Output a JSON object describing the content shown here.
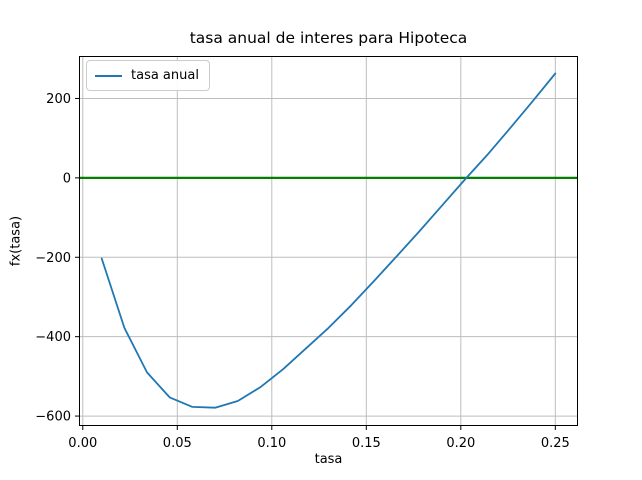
{
  "figure": {
    "title": "tasa anual de interes para Hipoteca",
    "xlabel": "tasa",
    "ylabel": "fx(tasa)"
  },
  "legend": {
    "items": [
      {
        "label": "tasa anual",
        "color": "#1f77b4"
      }
    ]
  },
  "colors": {
    "series_line": "#1f77b4",
    "zero_line": "#008000",
    "grid": "#bdbdbd",
    "spine": "#000000",
    "text": "#000000",
    "legend_border": "#cccccc",
    "background": "#ffffff"
  },
  "chart_data": {
    "type": "line",
    "title": "tasa anual de interes para Hipoteca",
    "xlabel": "tasa",
    "ylabel": "fx(tasa)",
    "grid": true,
    "legend_position": "upper left",
    "xlim": [
      -0.002,
      0.262
    ],
    "ylim": [
      -625,
      307
    ],
    "xticks": {
      "values": [
        0,
        0.05,
        0.1,
        0.15,
        0.2,
        0.25
      ],
      "labels": [
        "0.00",
        "0.05",
        "0.10",
        "0.15",
        "0.20",
        "0.25"
      ]
    },
    "yticks": {
      "values": [
        -600,
        -400,
        -200,
        0,
        200
      ],
      "labels": [
        "−600",
        "−400",
        "−200",
        "0",
        "200"
      ]
    },
    "zero_line": {
      "y": 0,
      "color": "#008000"
    },
    "x": [
      0.01,
      0.022,
      0.034,
      0.046,
      0.058,
      0.07,
      0.082,
      0.094,
      0.106,
      0.118,
      0.13,
      0.142,
      0.154,
      0.166,
      0.178,
      0.19,
      0.202,
      0.214,
      0.226,
      0.238,
      0.25
    ],
    "series": [
      {
        "name": "tasa anual",
        "color": "#1f77b4",
        "values": [
          -203,
          -378,
          -490,
          -553,
          -577,
          -579,
          -562,
          -527,
          -482,
          -430,
          -378,
          -321,
          -260,
          -198,
          -135,
          -70,
          -5,
          58,
          125,
          193,
          263
        ]
      }
    ]
  }
}
